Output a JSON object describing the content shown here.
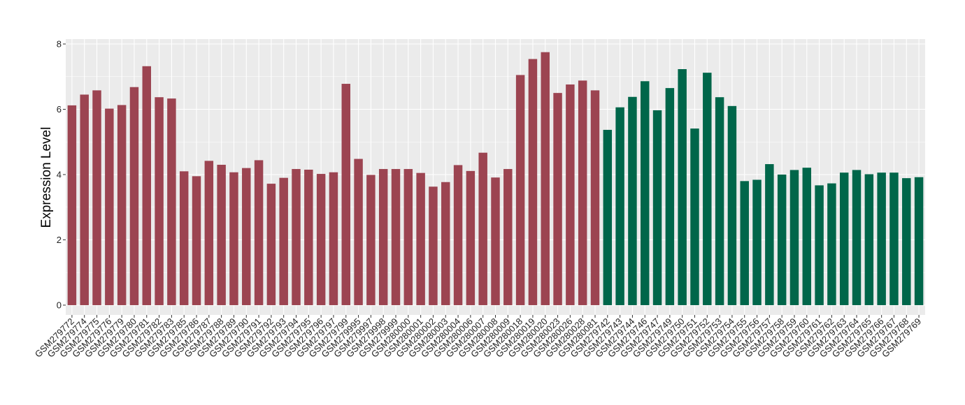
{
  "chart_data": {
    "type": "bar",
    "ylabel": "Expression Level",
    "xlabel": "",
    "ylim": [
      -0.3,
      8.15
    ],
    "yticks": [
      0,
      2,
      4,
      6,
      8
    ],
    "grid": true,
    "background": "#EBEBEB",
    "grid_color": "#FFFFFF",
    "colors": {
      "group1": "#9C4451",
      "group2": "#00664A"
    },
    "categories": [
      "GSM279772",
      "GSM279774",
      "GSM279775",
      "GSM279776",
      "GSM279779",
      "GSM279780",
      "GSM279781",
      "GSM279782",
      "GSM279783",
      "GSM279785",
      "GSM279786",
      "GSM279787",
      "GSM279788",
      "GSM279789",
      "GSM279790",
      "GSM279791",
      "GSM279792",
      "GSM279793",
      "GSM279794",
      "GSM279795",
      "GSM279796",
      "GSM279797",
      "GSM279799",
      "GSM279995",
      "GSM279997",
      "GSM279998",
      "GSM279999",
      "GSM280000",
      "GSM280001",
      "GSM280002",
      "GSM280003",
      "GSM280004",
      "GSM280006",
      "GSM280007",
      "GSM280008",
      "GSM280009",
      "GSM280018",
      "GSM280019",
      "GSM280020",
      "GSM280023",
      "GSM280026",
      "GSM280028",
      "GSM280081",
      "GSM279742",
      "GSM279743",
      "GSM279744",
      "GSM279746",
      "GSM279747",
      "GSM279749",
      "GSM279750",
      "GSM279751",
      "GSM279752",
      "GSM279753",
      "GSM279754",
      "GSM279755",
      "GSM279756",
      "GSM279757",
      "GSM279758",
      "GSM279759",
      "GSM279760",
      "GSM279761",
      "GSM279762",
      "GSM279763",
      "GSM279764",
      "GSM279765",
      "GSM279766",
      "GSM279767",
      "GSM279768",
      "GSM279769"
    ],
    "values": [
      6.12,
      6.45,
      6.58,
      6.02,
      6.13,
      6.68,
      7.32,
      6.37,
      6.33,
      4.1,
      3.95,
      4.42,
      4.3,
      4.07,
      4.2,
      4.44,
      3.72,
      3.9,
      4.17,
      4.15,
      4.02,
      4.07,
      6.78,
      4.48,
      3.99,
      4.17,
      4.17,
      4.17,
      4.05,
      3.63,
      3.77,
      4.29,
      4.11,
      4.67,
      3.91,
      4.17,
      7.05,
      7.54,
      7.75,
      6.5,
      6.76,
      6.88,
      6.58,
      5.37,
      6.06,
      6.38,
      6.86,
      5.97,
      6.65,
      7.23,
      5.41,
      7.12,
      6.37,
      6.1,
      3.8,
      3.84,
      4.32,
      4.0,
      4.14,
      4.21,
      3.67,
      3.73,
      4.06,
      4.14,
      4.01,
      4.06,
      4.06,
      3.89,
      3.92
    ],
    "groups": [
      1,
      1,
      1,
      1,
      1,
      1,
      1,
      1,
      1,
      1,
      1,
      1,
      1,
      1,
      1,
      1,
      1,
      1,
      1,
      1,
      1,
      1,
      1,
      1,
      1,
      1,
      1,
      1,
      1,
      1,
      1,
      1,
      1,
      1,
      1,
      1,
      1,
      1,
      1,
      1,
      1,
      1,
      1,
      2,
      2,
      2,
      2,
      2,
      2,
      2,
      2,
      2,
      2,
      2,
      2,
      2,
      2,
      2,
      2,
      2,
      2,
      2,
      2,
      2,
      2,
      2,
      2,
      2,
      2
    ]
  }
}
